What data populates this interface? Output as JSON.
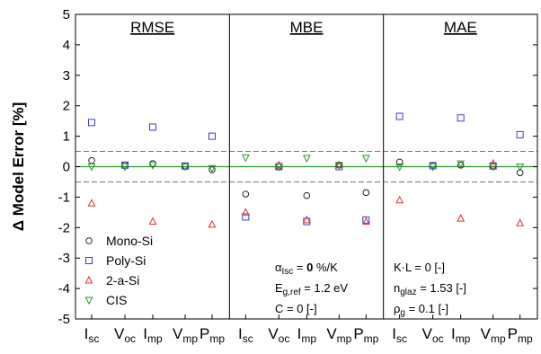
{
  "chart_data": {
    "type": "scatter",
    "ylabel": "Δ Model Error  [%]",
    "ylim": [
      -5,
      5
    ],
    "yticks": [
      5,
      4,
      3,
      2,
      1,
      0,
      -1,
      -2,
      -3,
      -4,
      -5
    ],
    "reference_lines": [
      0.5,
      0,
      -0.5
    ],
    "parameters": [
      {
        "main": "I",
        "sub": "sc"
      },
      {
        "main": "V",
        "sub": "oc"
      },
      {
        "main": "I",
        "sub": "mp"
      },
      {
        "main": "V",
        "sub": "mp"
      },
      {
        "main": "P",
        "sub": "mp"
      }
    ],
    "panels": [
      {
        "title": "RMSE",
        "series": {
          "Mono-Si": [
            0.2,
            0.05,
            0.1,
            0.02,
            -0.1
          ],
          "Poly-Si": [
            1.45,
            0.05,
            1.3,
            0.02,
            1.0
          ],
          "2-a-Si": [
            -1.2,
            null,
            -1.8,
            null,
            -1.9
          ],
          "CIS": [
            0.0,
            0.0,
            0.05,
            0.0,
            -0.05
          ]
        }
      },
      {
        "title": "MBE",
        "series": {
          "Mono-Si": [
            -0.9,
            0.0,
            -0.95,
            0.05,
            -0.85
          ],
          "Poly-Si": [
            -1.65,
            0.0,
            -1.8,
            0.0,
            -1.75
          ],
          "2-a-Si": [
            -1.5,
            0.05,
            -1.75,
            0.05,
            -1.8
          ],
          "CIS": [
            0.3,
            0.0,
            0.28,
            0.05,
            0.28
          ]
        }
      },
      {
        "title": "MAE",
        "series": {
          "Mono-Si": [
            0.15,
            0.05,
            0.05,
            0.02,
            -0.2
          ],
          "Poly-Si": [
            1.65,
            0.03,
            1.6,
            0.02,
            1.05
          ],
          "2-a-Si": [
            -1.1,
            null,
            -1.7,
            0.1,
            -1.85
          ],
          "CIS": [
            0.0,
            0.0,
            0.1,
            0.0,
            0.0
          ]
        }
      }
    ],
    "legend": [
      {
        "name": "Mono-Si",
        "marker": "circle",
        "color": "#222222"
      },
      {
        "name": "Poly-Si",
        "marker": "square",
        "color": "#3b3bd6"
      },
      {
        "name": "2-a-Si",
        "marker": "triangle-up",
        "color": "#e03030"
      },
      {
        "name": "CIS",
        "marker": "triangle-down",
        "color": "#2a9a2a"
      }
    ],
    "legend_position": "bottom-left",
    "zero_line_color": "#2a9a2a",
    "dashed_line_color": "#777777"
  },
  "annotations": {
    "mbe": [
      {
        "parts": [
          {
            "t": "α"
          },
          {
            "t": "Isc",
            "sub": true
          },
          {
            "t": " = "
          },
          {
            "t": "0",
            "bold": true
          },
          {
            "t": " %/K"
          }
        ]
      },
      {
        "parts": [
          {
            "t": "E"
          },
          {
            "t": "g,ref",
            "sub": true
          },
          {
            "t": " = 1.2 eV"
          }
        ]
      },
      {
        "parts": [
          {
            "t": "C = 0 [-]"
          }
        ]
      }
    ],
    "mae": [
      {
        "parts": [
          {
            "t": "K·L = 0 [-]"
          }
        ]
      },
      {
        "parts": [
          {
            "t": "n"
          },
          {
            "t": "glaz",
            "sub": true
          },
          {
            "t": " = 1.53 [-]"
          }
        ]
      },
      {
        "parts": [
          {
            "t": "ρ"
          },
          {
            "t": "g",
            "sub": true
          },
          {
            "t": " = 0.1 [-]"
          }
        ]
      }
    ]
  }
}
